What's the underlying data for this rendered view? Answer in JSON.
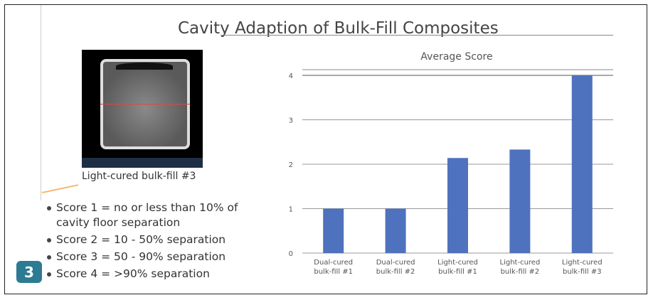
{
  "slide": {
    "title": "Cavity Adaption of Bulk-Fill Composites",
    "image_caption": "Light-cured bulk-fill #3",
    "bullets": [
      "Score 1 = no or less than 10% of cavity floor separation",
      "Score 2 = 10 - 50% separation",
      "Score 3 = 50 - 90% separation",
      "Score 4 = >90% separation"
    ],
    "figure_number": "3"
  },
  "chart_data": {
    "type": "bar",
    "title": "Average Score",
    "categories": [
      [
        "Dual-cured",
        "bulk-fill #1"
      ],
      [
        "Dual-cured",
        "bulk-fill #2"
      ],
      [
        "Light-cured",
        "bulk-fill #1"
      ],
      [
        "Light-cured",
        "bulk-fill #2"
      ],
      [
        "Light-cured",
        "bulk-fill #3"
      ]
    ],
    "values": [
      1,
      1,
      2.14,
      2.33,
      4
    ],
    "ylim": [
      0,
      4
    ],
    "yticks": [
      "0",
      "1",
      "2",
      "3",
      "4"
    ],
    "xlabel": "",
    "ylabel": "",
    "grid": true,
    "bar_color": "#4f72be"
  }
}
